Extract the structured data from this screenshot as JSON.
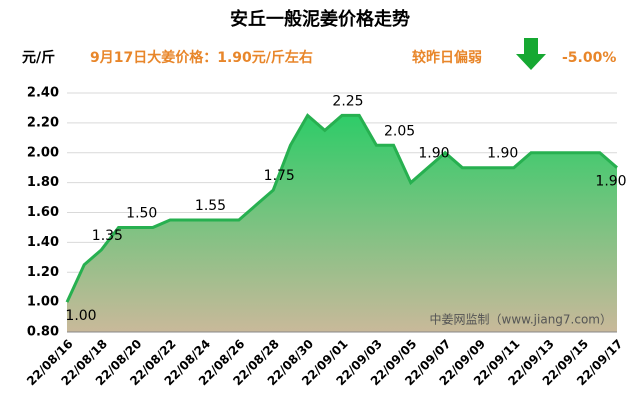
{
  "chart_data": {
    "type": "area",
    "title": "安丘一般泥姜价格走势",
    "y_unit": "元/斤",
    "subtitle": "9月17日大姜价格：1.90元/斤左右",
    "trend_text": "较昨日偏弱",
    "change": "-5.00%",
    "watermark": "中姜网监制（www.jiang7.com）",
    "categories": [
      "22/08/16",
      null,
      "22/08/18",
      null,
      "22/08/20",
      null,
      "22/08/22",
      null,
      "22/08/24",
      null,
      "22/08/26",
      null,
      "22/08/28",
      null,
      "22/08/30",
      null,
      "22/09/01",
      null,
      "22/09/03",
      null,
      "22/09/05",
      null,
      "22/09/07",
      null,
      "22/09/09",
      null,
      "22/09/11",
      null,
      "22/09/13",
      null,
      "22/09/15",
      null,
      "22/09/17"
    ],
    "values": [
      1.0,
      1.25,
      1.35,
      1.5,
      1.5,
      1.5,
      1.55,
      1.55,
      1.55,
      1.55,
      1.55,
      1.65,
      1.75,
      2.05,
      2.25,
      2.15,
      2.25,
      2.25,
      2.05,
      2.05,
      1.8,
      1.9,
      2.0,
      1.9,
      1.9,
      1.9,
      1.9,
      2.0,
      2.0,
      2.0,
      2.0,
      2.0,
      1.9
    ],
    "value_labels": [
      "1.00",
      null,
      "1.35",
      null,
      "1.50",
      null,
      null,
      null,
      "1.55",
      null,
      null,
      null,
      "1.75",
      null,
      null,
      null,
      "2.25",
      null,
      null,
      "2.05",
      null,
      "1.90",
      null,
      null,
      null,
      "1.90",
      null,
      null,
      null,
      null,
      null,
      null,
      "1.90"
    ],
    "color": "#27b050",
    "ylim": [
      0.8,
      2.4
    ],
    "yticks": [
      {
        "value": 0.8,
        "label": "0.80"
      },
      {
        "value": 1.0,
        "label": "1.00"
      },
      {
        "value": 1.2,
        "label": "1.20"
      },
      {
        "value": 1.4,
        "label": "1.40"
      },
      {
        "value": 1.6,
        "label": "1.60"
      },
      {
        "value": 1.8,
        "label": "1.80"
      },
      {
        "value": 2.0,
        "label": "2.00"
      },
      {
        "value": 2.2,
        "label": "2.20"
      },
      {
        "value": 2.4,
        "label": "2.40"
      }
    ],
    "grid": true
  }
}
